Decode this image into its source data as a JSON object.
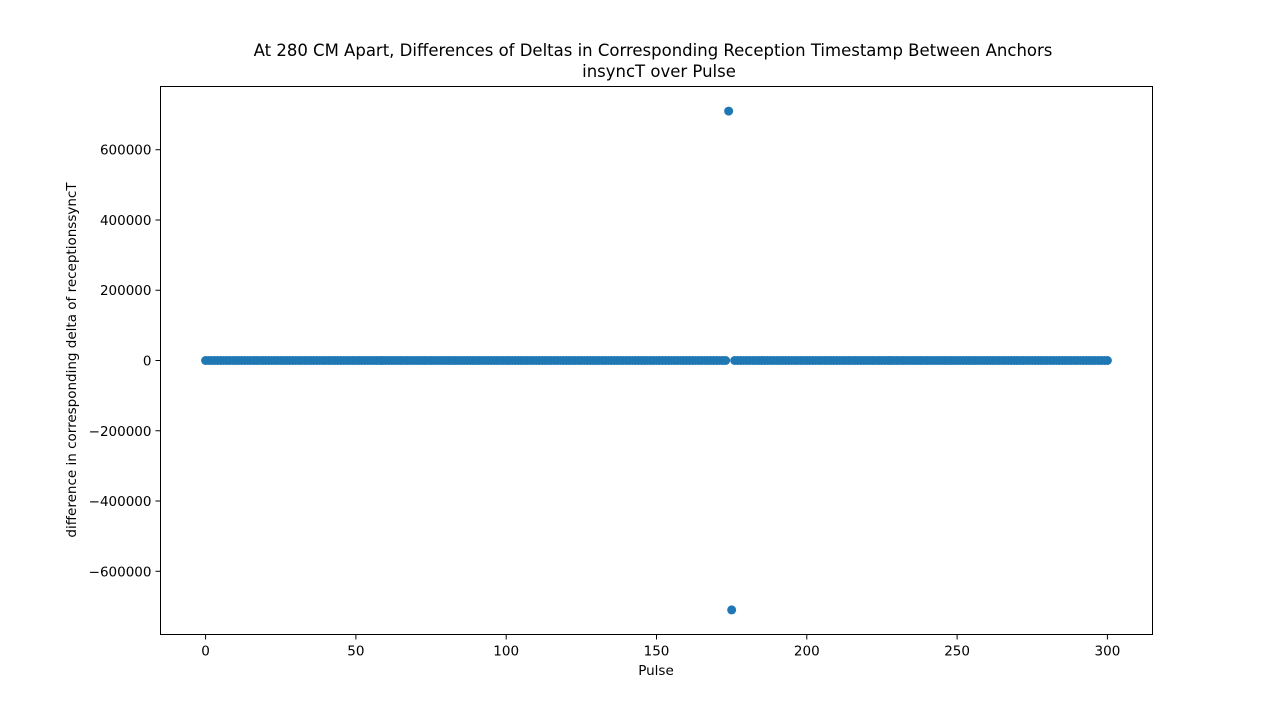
{
  "chart_data": {
    "type": "scatter",
    "title": "At 280 CM Apart, Differences of Deltas in Corresponding Reception Timestamp Between Anchors",
    "subtitle": "insyncT over Pulse",
    "xlabel": "Pulse",
    "ylabel": "difference in corresponding delta of receptionssyncT",
    "xlim": [
      -15,
      315
    ],
    "ylim": [
      -780000,
      780000
    ],
    "xticks": [
      0,
      50,
      100,
      150,
      200,
      250,
      300
    ],
    "xtick_labels": [
      "0",
      "50",
      "100",
      "150",
      "200",
      "250",
      "300"
    ],
    "yticks": [
      -600000,
      -400000,
      -200000,
      0,
      200000,
      400000,
      600000
    ],
    "ytick_labels": [
      "−600000",
      "−400000",
      "−200000",
      "0",
      "200000",
      "400000",
      "600000"
    ],
    "grid": false,
    "legend": "none",
    "marker_color": "#1f77b4",
    "baseline": {
      "x_start": 0,
      "x_end": 300,
      "step": 1,
      "y": 0,
      "skip_x": [
        174,
        175
      ]
    },
    "outliers": [
      {
        "x": 174,
        "y": 710000
      },
      {
        "x": 175,
        "y": -710000
      }
    ]
  }
}
